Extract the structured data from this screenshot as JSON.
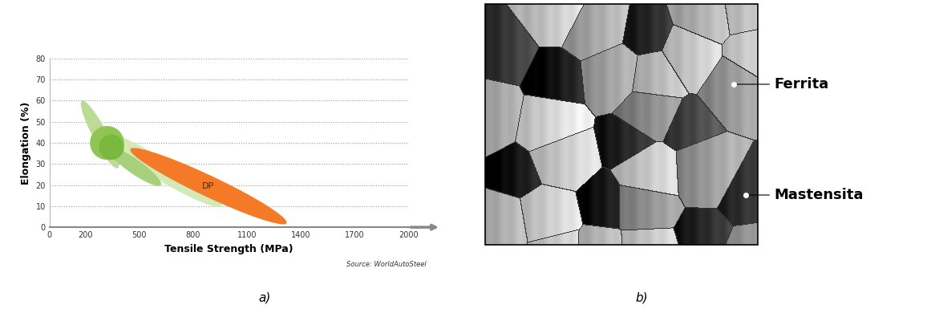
{
  "chart_data": {
    "type": "ellipse",
    "caption": "a)",
    "x_label": "Tensile Strength (MPa)",
    "y_label": "Elongation (%)",
    "source": "Source: WorldAutoSteel",
    "xlim": [
      0,
      2000
    ],
    "xticks": [
      0,
      200,
      500,
      800,
      1100,
      1400,
      1700,
      2000
    ],
    "ylim": [
      0,
      80
    ],
    "yticks": [
      0,
      10,
      20,
      30,
      40,
      50,
      60,
      70,
      80
    ],
    "grid": true,
    "regions": [
      {
        "color": "#bcdc96",
        "extremes": [
          [
            180,
            60
          ],
          [
            380,
            28
          ],
          [
            245,
            42.4
          ],
          [
            315,
            45.6
          ]
        ]
      },
      {
        "color": "#d3eab7",
        "extremes": [
          [
            280,
            45
          ],
          [
            960,
            10
          ],
          [
            590,
            23.3
          ],
          [
            650,
            31.7
          ]
        ]
      },
      {
        "color": "#a6d07a",
        "extremes": [
          [
            320,
            38
          ],
          [
            620,
            20
          ],
          [
            447,
            26.2
          ],
          [
            493,
            31.8
          ]
        ]
      },
      {
        "color": "#8fc653",
        "extremes": [
          [
            225,
            40
          ],
          [
            415,
            40
          ],
          [
            320,
            32
          ],
          [
            320,
            48
          ]
        ]
      },
      {
        "color": "#7ab83f",
        "extremes": [
          [
            275,
            38
          ],
          [
            415,
            38
          ],
          [
            345,
            32
          ],
          [
            345,
            44
          ]
        ]
      },
      {
        "label": "DP",
        "color": "#f47a27",
        "extremes": [
          [
            450,
            37
          ],
          [
            1320,
            2
          ],
          [
            860,
            15
          ],
          [
            910,
            24
          ]
        ]
      }
    ]
  },
  "diagram": {
    "caption": "b)",
    "labels": [
      "Ferrita",
      "Mastensita"
    ]
  }
}
